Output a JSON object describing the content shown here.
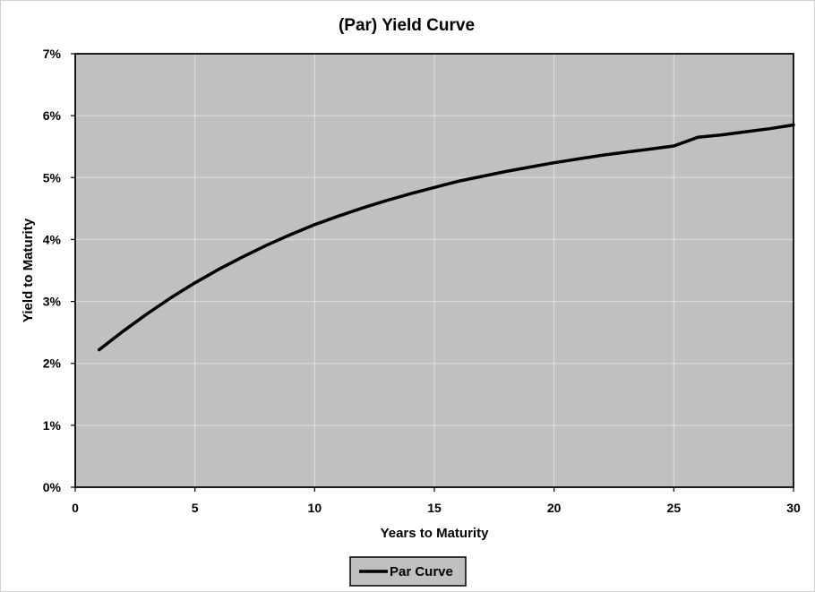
{
  "chart_data": {
    "type": "line",
    "title": "(Par) Yield Curve",
    "xlabel": "Years to Maturity",
    "ylabel": "Yield to Maturity",
    "xlim": [
      0,
      30
    ],
    "ylim": [
      0,
      0.07
    ],
    "x_ticks": [
      0,
      5,
      10,
      15,
      20,
      25,
      30
    ],
    "x_tick_labels": [
      "0",
      "5",
      "10",
      "15",
      "20",
      "25",
      "30"
    ],
    "y_ticks": [
      0,
      0.01,
      0.02,
      0.03,
      0.04,
      0.05,
      0.06,
      0.07
    ],
    "y_tick_labels": [
      "0%",
      "1%",
      "2%",
      "3%",
      "4%",
      "5%",
      "6%",
      "7%"
    ],
    "grid": true,
    "legend_position": "bottom-center",
    "plot_background": "#c0c0c0",
    "gridline_color": "#e0e0e0",
    "series": [
      {
        "name": "Par Curve",
        "color": "#000000",
        "x": [
          1,
          2,
          3,
          4,
          5,
          6,
          7,
          8,
          9,
          10,
          11,
          12,
          13,
          14,
          15,
          16,
          17,
          18,
          19,
          20,
          21,
          22,
          23,
          24,
          25,
          26,
          27,
          28,
          29,
          30
        ],
        "y": [
          0.0222,
          0.0252,
          0.028,
          0.0306,
          0.033,
          0.0352,
          0.0372,
          0.0391,
          0.0408,
          0.0424,
          0.0438,
          0.0451,
          0.0463,
          0.0474,
          0.0484,
          0.0494,
          0.0502,
          0.051,
          0.0517,
          0.0524,
          0.053,
          0.0536,
          0.0541,
          0.0546,
          0.0551,
          0.0565,
          0.0569,
          0.0574,
          0.0579,
          0.0585
        ]
      }
    ]
  }
}
